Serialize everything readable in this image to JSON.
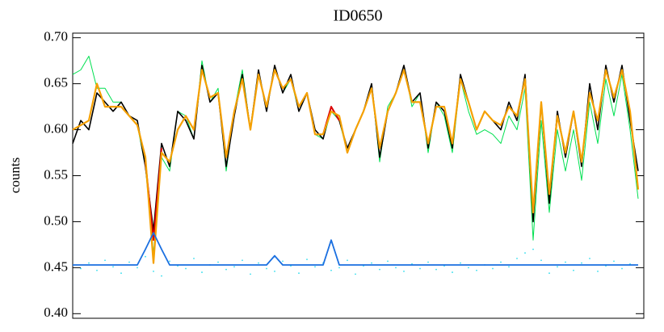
{
  "chart_data": {
    "type": "line",
    "title": "ID0650",
    "y_label": "counts",
    "x": [
      0,
      1,
      2,
      3,
      4,
      5,
      6,
      7,
      8,
      9,
      10,
      11,
      12,
      13,
      14,
      15,
      16,
      17,
      18,
      19,
      20,
      21,
      22,
      23,
      24,
      25,
      26,
      27,
      28,
      29,
      30,
      31,
      32,
      33,
      34,
      35,
      36,
      37,
      38,
      39,
      40,
      41,
      42,
      43,
      44,
      45,
      46,
      47,
      48,
      49,
      50,
      51,
      52,
      53,
      54,
      55,
      56,
      57,
      58,
      59,
      60,
      61,
      62,
      63,
      64,
      65,
      66,
      67,
      68,
      69,
      70
    ],
    "xlim": [
      0,
      70.7
    ],
    "ylim": [
      0.395,
      0.705
    ],
    "yticks": [
      {
        "value": 0.4,
        "label": "0.40"
      },
      {
        "value": 0.45,
        "label": "0.45"
      },
      {
        "value": 0.5,
        "label": "0.50"
      },
      {
        "value": 0.55,
        "label": "0.55"
      },
      {
        "value": 0.6,
        "label": "0.60"
      },
      {
        "value": 0.65,
        "label": "0.65"
      },
      {
        "value": 0.7,
        "label": "0.70"
      }
    ],
    "series": [
      {
        "color": "#00e050",
        "width": 1,
        "style": "line",
        "values": [
          0.66,
          0.665,
          0.68,
          0.645,
          0.645,
          0.63,
          0.63,
          0.615,
          0.605,
          0.56,
          0.465,
          0.57,
          0.555,
          0.62,
          0.615,
          0.59,
          0.675,
          0.63,
          0.645,
          0.555,
          0.62,
          0.665,
          0.6,
          0.665,
          0.62,
          0.67,
          0.64,
          0.655,
          0.62,
          0.64,
          0.595,
          0.59,
          0.62,
          0.61,
          0.575,
          0.6,
          0.62,
          0.65,
          0.565,
          0.625,
          0.64,
          0.67,
          0.625,
          0.64,
          0.575,
          0.63,
          0.615,
          0.575,
          0.655,
          0.62,
          0.595,
          0.6,
          0.595,
          0.585,
          0.615,
          0.6,
          0.645,
          0.48,
          0.61,
          0.51,
          0.6,
          0.555,
          0.6,
          0.545,
          0.63,
          0.585,
          0.655,
          0.615,
          0.66,
          0.6,
          0.525
        ]
      },
      {
        "color": "#000000",
        "width": 1.6,
        "style": "line",
        "values": [
          0.585,
          0.61,
          0.6,
          0.64,
          0.63,
          0.62,
          0.63,
          0.615,
          0.61,
          0.56,
          0.49,
          0.585,
          0.56,
          0.62,
          0.61,
          0.59,
          0.67,
          0.63,
          0.64,
          0.56,
          0.615,
          0.66,
          0.6,
          0.665,
          0.62,
          0.67,
          0.64,
          0.66,
          0.62,
          0.64,
          0.6,
          0.59,
          0.625,
          0.61,
          0.58,
          0.6,
          0.62,
          0.65,
          0.57,
          0.62,
          0.64,
          0.67,
          0.63,
          0.64,
          0.58,
          0.63,
          0.62,
          0.58,
          0.66,
          0.63,
          0.6,
          0.62,
          0.61,
          0.6,
          0.63,
          0.61,
          0.66,
          0.5,
          0.63,
          0.52,
          0.62,
          0.57,
          0.62,
          0.56,
          0.65,
          0.6,
          0.67,
          0.63,
          0.67,
          0.61,
          0.555
        ]
      },
      {
        "color": "#dd0000",
        "width": 2,
        "style": "line",
        "values": [
          null,
          null,
          null,
          null,
          null,
          null,
          null,
          null,
          null,
          0.565,
          0.48,
          0.58,
          null,
          null,
          null,
          null,
          null,
          null,
          null,
          null,
          null,
          null,
          null,
          null,
          null,
          null,
          null,
          null,
          null,
          null,
          null,
          0.595,
          0.625,
          0.61,
          null,
          null,
          null,
          null,
          null,
          null,
          null,
          null,
          null,
          null,
          null,
          null,
          null,
          null,
          null,
          null,
          null,
          null,
          null,
          null,
          null,
          null,
          null,
          null,
          null,
          null,
          null,
          null,
          null,
          null,
          null,
          null,
          null,
          null,
          null,
          null,
          null
        ]
      },
      {
        "color": "#f5a000",
        "width": 2.2,
        "style": "line",
        "values": [
          0.6,
          0.605,
          0.61,
          0.65,
          0.625,
          0.625,
          0.625,
          0.615,
          0.605,
          0.57,
          0.455,
          0.575,
          0.565,
          0.6,
          0.615,
          0.6,
          0.665,
          0.635,
          0.64,
          0.57,
          0.62,
          0.655,
          0.6,
          0.66,
          0.625,
          0.665,
          0.645,
          0.655,
          0.625,
          0.64,
          0.595,
          0.595,
          0.62,
          0.615,
          0.575,
          0.6,
          0.62,
          0.645,
          0.58,
          0.62,
          0.64,
          0.665,
          0.63,
          0.63,
          0.585,
          0.625,
          0.625,
          0.585,
          0.655,
          0.63,
          0.6,
          0.62,
          0.61,
          0.605,
          0.625,
          0.615,
          0.655,
          0.51,
          0.63,
          0.53,
          0.615,
          0.575,
          0.62,
          0.565,
          0.64,
          0.61,
          0.665,
          0.635,
          0.665,
          0.62,
          0.535
        ]
      },
      {
        "color": "#33ddee",
        "width": 1.5,
        "style": "dots",
        "values": [
          null,
          0.449,
          0.455,
          0.447,
          0.458,
          0.451,
          0.444,
          0.456,
          0.45,
          0.462,
          0.446,
          0.441,
          0.457,
          0.452,
          0.449,
          0.46,
          0.445,
          0.453,
          0.456,
          0.448,
          0.451,
          0.458,
          0.443,
          0.455,
          0.449,
          0.446,
          0.457,
          0.452,
          0.444,
          0.459,
          0.451,
          0.455,
          0.447,
          0.45,
          0.458,
          0.443,
          0.452,
          0.455,
          0.448,
          0.457,
          0.45,
          0.446,
          0.454,
          0.449,
          0.456,
          0.448,
          0.452,
          0.445,
          0.455,
          0.45,
          0.447,
          0.453,
          0.449,
          0.456,
          0.451,
          0.46,
          0.466,
          0.47,
          0.458,
          0.444,
          0.451,
          0.456,
          0.447,
          0.455,
          0.46,
          0.446,
          0.452,
          0.457,
          0.449,
          0.454,
          null
        ]
      },
      {
        "color": "#1a6fe0",
        "width": 1.8,
        "style": "line",
        "values": [
          0.453,
          0.453,
          0.453,
          0.453,
          0.453,
          0.453,
          0.453,
          0.453,
          0.453,
          0.47,
          0.488,
          0.47,
          0.453,
          0.453,
          0.453,
          0.453,
          0.453,
          0.453,
          0.453,
          0.453,
          0.453,
          0.453,
          0.453,
          0.453,
          0.453,
          0.463,
          0.453,
          0.453,
          0.453,
          0.453,
          0.453,
          0.453,
          0.48,
          0.453,
          0.453,
          0.453,
          0.453,
          0.453,
          0.453,
          0.453,
          0.453,
          0.453,
          0.453,
          0.453,
          0.453,
          0.453,
          0.453,
          0.453,
          0.453,
          0.453,
          0.453,
          0.453,
          0.453,
          0.453,
          0.453,
          0.453,
          0.453,
          0.453,
          0.453,
          0.453,
          0.453,
          0.453,
          0.453,
          0.453,
          0.453,
          0.453,
          0.453,
          0.453,
          0.453,
          0.453,
          0.453
        ]
      }
    ]
  }
}
